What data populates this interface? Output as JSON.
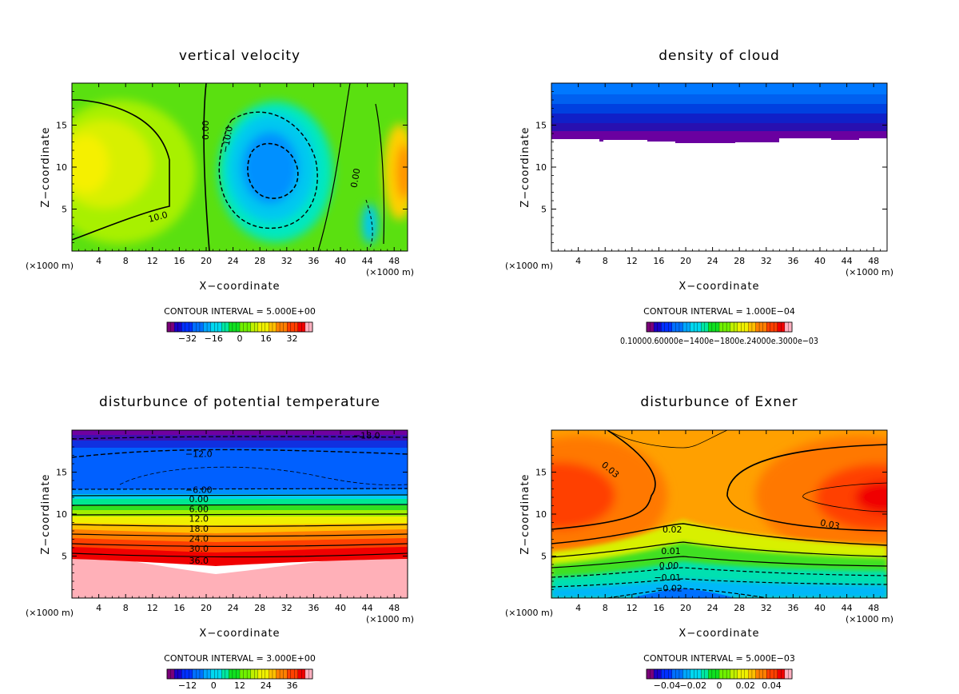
{
  "palette": [
    "#7a007a",
    "#1a00c8",
    "#0030ff",
    "#0070ff",
    "#00a8ff",
    "#00d8f0",
    "#00e8a0",
    "#10e020",
    "#70f000",
    "#c0f000",
    "#f0f000",
    "#ffc000",
    "#ff8000",
    "#ff4000",
    "#f00000",
    "#ffb0c0"
  ],
  "chart_data": [
    {
      "type": "heatmap",
      "title": "vertical velocity",
      "xlabel": "X−coordinate",
      "ylabel": "Z−coordinate",
      "x_unit_left": "(×1000 m)",
      "x_unit_right": "(×1000 m)",
      "xlim": [
        0,
        50
      ],
      "ylim": [
        0,
        20
      ],
      "xticks": [
        "4",
        "8",
        "12",
        "16",
        "20",
        "24",
        "28",
        "32",
        "36",
        "40",
        "44",
        "48"
      ],
      "yticks": [
        "5",
        "10",
        "15"
      ],
      "contour_interval": "CONTOUR INTERVAL = 5.000E+00",
      "colorbar_ticks": [
        "−32",
        "−16",
        "0",
        "16",
        "32"
      ],
      "contour_labels": [
        {
          "text": "0.00",
          "x": 19.9,
          "y": 14.4
        },
        {
          "text": "−10.0",
          "x": 23.1,
          "y": 13.3
        },
        {
          "text": "10.0",
          "x": 12.8,
          "y": 4.1
        },
        {
          "text": "0.00",
          "x": 42.2,
          "y": 8.7
        }
      ]
    },
    {
      "type": "heatmap",
      "title": "density of cloud",
      "xlabel": "X−coordinate",
      "ylabel": "Z−coordinate",
      "x_unit_left": "(×1000 m)",
      "x_unit_right": "(×1000 m)",
      "xlim": [
        0,
        50
      ],
      "ylim": [
        0,
        20
      ],
      "xticks": [
        "4",
        "8",
        "12",
        "16",
        "20",
        "24",
        "28",
        "32",
        "36",
        "40",
        "44",
        "48"
      ],
      "yticks": [
        "5",
        "10",
        "15"
      ],
      "contour_interval": "CONTOUR INTERVAL = 1.000E−04",
      "colorbar_ticks_text": "0.10000.60000e−1400e−1800e.24000e.3000e−03",
      "cloud_base_height": 13.3
    },
    {
      "type": "heatmap",
      "title": "disturbunce of potential temperature",
      "xlabel": "X−coordinate",
      "ylabel": "Z−coordinate",
      "x_unit_left": "(×1000 m)",
      "x_unit_right": "(×1000 m)",
      "xlim": [
        0,
        50
      ],
      "ylim": [
        0,
        20
      ],
      "xticks": [
        "4",
        "8",
        "12",
        "16",
        "20",
        "24",
        "28",
        "32",
        "36",
        "40",
        "44",
        "48"
      ],
      "yticks": [
        "5",
        "10",
        "15"
      ],
      "contour_interval": "CONTOUR INTERVAL = 3.000E+00",
      "colorbar_ticks": [
        "−12",
        "0",
        "12",
        "24",
        "36"
      ],
      "contour_labels": [
        {
          "text": "−18.0",
          "x": 43.9,
          "y": 19.4
        },
        {
          "text": "−12.0",
          "x": 18.9,
          "y": 17.2
        },
        {
          "text": "−6.00",
          "x": 18.9,
          "y": 12.9
        },
        {
          "text": "0.00",
          "x": 18.9,
          "y": 11.8
        },
        {
          "text": "6.00",
          "x": 18.9,
          "y": 10.6
        },
        {
          "text": "12.0",
          "x": 18.9,
          "y": 9.5
        },
        {
          "text": "18.0",
          "x": 18.9,
          "y": 8.3
        },
        {
          "text": "24.0",
          "x": 18.9,
          "y": 7.1
        },
        {
          "text": "30.0",
          "x": 18.9,
          "y": 5.9
        },
        {
          "text": "36.0",
          "x": 18.9,
          "y": 4.5
        }
      ]
    },
    {
      "type": "heatmap",
      "title": "disturbunce of Exner",
      "xlabel": "X−coordinate",
      "ylabel": "Z−coordinate",
      "x_unit_left": "(×1000 m)",
      "x_unit_right": "(×1000 m)",
      "xlim": [
        0,
        50
      ],
      "ylim": [
        0,
        20
      ],
      "xticks": [
        "4",
        "8",
        "12",
        "16",
        "20",
        "24",
        "28",
        "32",
        "36",
        "40",
        "44",
        "48"
      ],
      "yticks": [
        "5",
        "10",
        "15"
      ],
      "contour_interval": "CONTOUR INTERVAL = 5.000E−03",
      "colorbar_ticks": [
        "−0.04",
        "−0.02",
        "0",
        "0.02",
        "0.04"
      ],
      "contour_labels": [
        {
          "text": "0.03",
          "x": 8.8,
          "y": 15.3
        },
        {
          "text": "0.03",
          "x": 41.5,
          "y": 8.8
        },
        {
          "text": "0.02",
          "x": 18.0,
          "y": 8.2
        },
        {
          "text": "0.01",
          "x": 17.8,
          "y": 5.6
        },
        {
          "text": "0.00",
          "x": 17.5,
          "y": 3.9
        },
        {
          "text": "−0.01",
          "x": 17.3,
          "y": 2.5
        },
        {
          "text": "−0.02",
          "x": 17.5,
          "y": 1.2
        }
      ]
    }
  ]
}
